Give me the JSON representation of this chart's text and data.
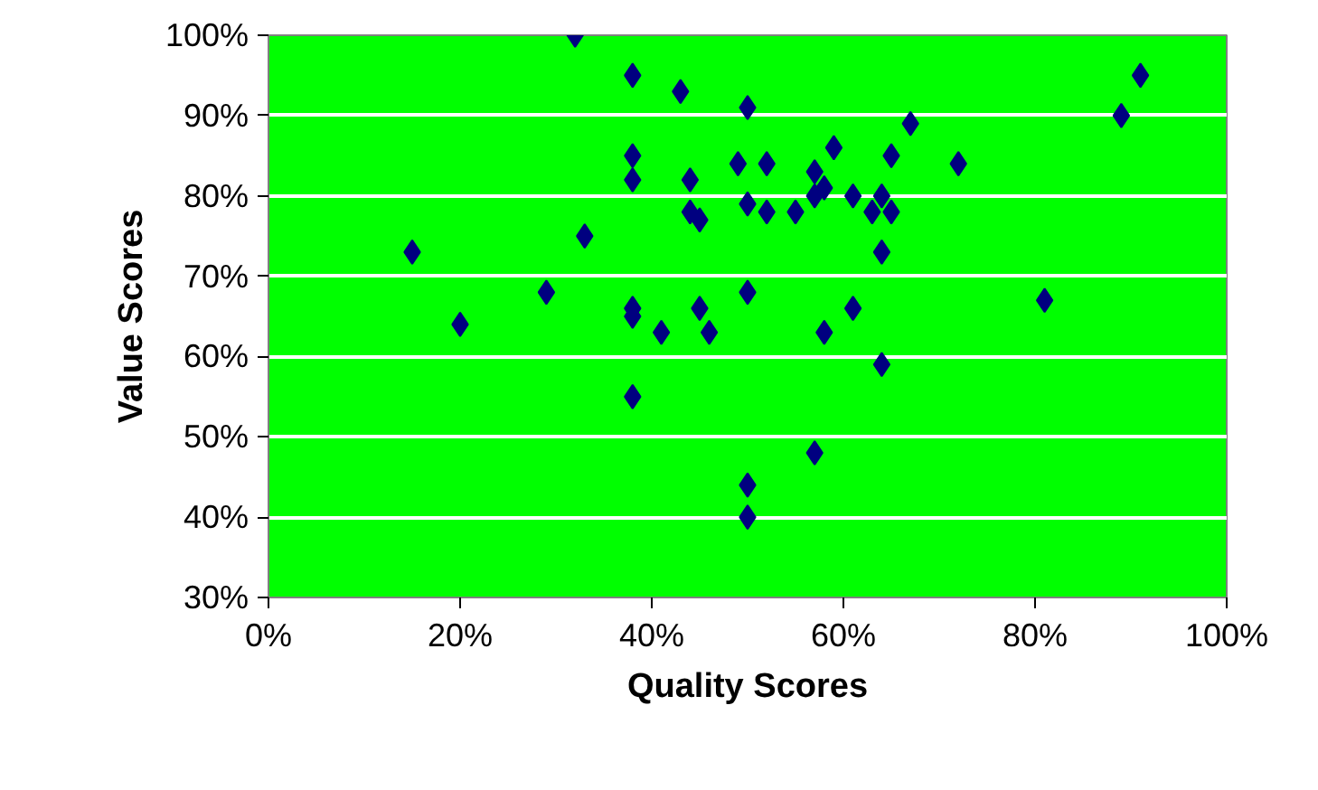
{
  "chart_data": {
    "type": "scatter",
    "xlabel": "Quality Scores",
    "ylabel": "Value Scores",
    "color": "#000080",
    "marker": "diamond",
    "grid": "y",
    "xlim": [
      0,
      100
    ],
    "ylim": [
      30,
      100
    ],
    "xticks": [
      {
        "value": 0,
        "label": "0%"
      },
      {
        "value": 20,
        "label": "20%"
      },
      {
        "value": 40,
        "label": "40%"
      },
      {
        "value": 60,
        "label": "60%"
      },
      {
        "value": 80,
        "label": "80%"
      },
      {
        "value": 100,
        "label": "100%"
      }
    ],
    "yticks": [
      {
        "value": 30,
        "label": "30%"
      },
      {
        "value": 40,
        "label": "40%"
      },
      {
        "value": 50,
        "label": "50%"
      },
      {
        "value": 60,
        "label": "60%"
      },
      {
        "value": 70,
        "label": "70%"
      },
      {
        "value": 80,
        "label": "80%"
      },
      {
        "value": 90,
        "label": "90%"
      },
      {
        "value": 100,
        "label": "100%"
      }
    ],
    "x": [
      32,
      38,
      43,
      50,
      38,
      49,
      38,
      44,
      44,
      45,
      50,
      33,
      15,
      29,
      45,
      50,
      91,
      89,
      67,
      59,
      65,
      72,
      52,
      57,
      58,
      57,
      61,
      64,
      52,
      55,
      63,
      65,
      64,
      61,
      81,
      20,
      38,
      38,
      41,
      46,
      38,
      50,
      50,
      58,
      64,
      57
    ],
    "values": [
      100,
      95,
      93,
      91,
      85,
      84,
      82,
      82,
      78,
      77,
      79,
      75,
      73,
      68,
      66,
      68,
      95,
      90,
      89,
      86,
      85,
      84,
      84,
      83,
      81,
      80,
      80,
      80,
      78,
      78,
      78,
      78,
      73,
      66,
      67,
      64,
      66,
      65,
      63,
      63,
      55,
      44,
      40,
      63,
      59,
      48
    ]
  }
}
